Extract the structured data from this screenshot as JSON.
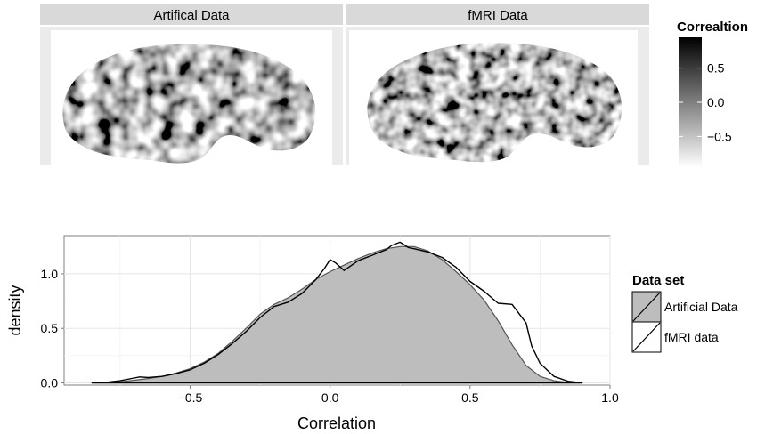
{
  "chart_data": [
    {
      "type": "heatmap",
      "panels": [
        {
          "title": "Artifical Data",
          "seed": 7
        },
        {
          "title": "fMRI Data",
          "seed": 19
        }
      ],
      "colorbar": {
        "title": "Correaltion",
        "ticks": [
          0.5,
          0.0,
          -0.5
        ],
        "tick_labels": [
          "0.5",
          "0.0",
          "−0.5"
        ],
        "range": [
          -0.95,
          0.95
        ],
        "low_color": "#ffffff",
        "high_color": "#000000"
      }
    },
    {
      "type": "area",
      "xlabel": "Correlation",
      "ylabel": "density",
      "xlim": [
        -0.95,
        1.0
      ],
      "ylim": [
        -0.02,
        1.35
      ],
      "xticks": [
        -0.5,
        0.0,
        0.5,
        1.0
      ],
      "xtick_labels": [
        "−0.5",
        "0.0",
        "0.5",
        "1.0"
      ],
      "yticks": [
        0.0,
        0.5,
        1.0
      ],
      "ytick_labels": [
        "0.0",
        "0.5",
        "1.0"
      ],
      "grid": true,
      "legend": {
        "title": "Data set",
        "placement": "right"
      },
      "series": [
        {
          "name": "Artificial Data",
          "fill": "#bdbdbd",
          "x": [
            -0.85,
            -0.8,
            -0.75,
            -0.7,
            -0.65,
            -0.6,
            -0.55,
            -0.5,
            -0.45,
            -0.4,
            -0.35,
            -0.3,
            -0.25,
            -0.2,
            -0.15,
            -0.1,
            -0.05,
            0.0,
            0.05,
            0.1,
            0.15,
            0.2,
            0.25,
            0.3,
            0.35,
            0.4,
            0.45,
            0.5,
            0.55,
            0.6,
            0.65,
            0.7,
            0.75,
            0.8,
            0.85,
            0.9
          ],
          "y": [
            0.0,
            0.002,
            0.01,
            0.025,
            0.04,
            0.06,
            0.09,
            0.13,
            0.19,
            0.27,
            0.38,
            0.5,
            0.63,
            0.72,
            0.78,
            0.86,
            0.95,
            1.02,
            1.08,
            1.14,
            1.19,
            1.23,
            1.25,
            1.25,
            1.21,
            1.13,
            1.02,
            0.9,
            0.76,
            0.57,
            0.35,
            0.16,
            0.06,
            0.02,
            0.005,
            0.0
          ]
        },
        {
          "name": "fMRI data",
          "fill": "none",
          "x": [
            -0.85,
            -0.8,
            -0.75,
            -0.7,
            -0.68,
            -0.65,
            -0.6,
            -0.55,
            -0.5,
            -0.45,
            -0.4,
            -0.35,
            -0.3,
            -0.25,
            -0.2,
            -0.15,
            -0.1,
            -0.05,
            -0.02,
            0.0,
            0.02,
            0.05,
            0.1,
            0.15,
            0.2,
            0.22,
            0.25,
            0.28,
            0.3,
            0.35,
            0.4,
            0.45,
            0.5,
            0.55,
            0.6,
            0.65,
            0.7,
            0.72,
            0.75,
            0.8,
            0.85,
            0.9
          ],
          "y": [
            0.0,
            0.005,
            0.02,
            0.045,
            0.055,
            0.05,
            0.06,
            0.085,
            0.12,
            0.18,
            0.26,
            0.36,
            0.47,
            0.6,
            0.7,
            0.74,
            0.82,
            0.95,
            1.05,
            1.13,
            1.1,
            1.03,
            1.12,
            1.17,
            1.22,
            1.26,
            1.29,
            1.24,
            1.23,
            1.2,
            1.15,
            1.06,
            0.93,
            0.84,
            0.73,
            0.72,
            0.55,
            0.34,
            0.18,
            0.06,
            0.015,
            0.0
          ]
        }
      ]
    }
  ]
}
